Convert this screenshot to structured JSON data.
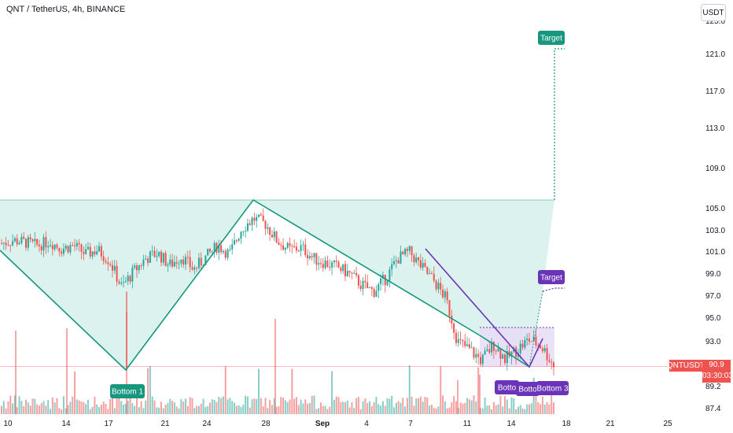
{
  "header": {
    "symbol_title": "QNT / TetherUS, 4h, BINANCE",
    "unit_button": "USDT"
  },
  "price_tag": {
    "symbol": "QNTUSDT",
    "price": "90.9",
    "countdown": "03:30:03"
  },
  "colors": {
    "up": "#26a69a",
    "down": "#ef5350",
    "purple": "#6a33b8",
    "teal": "#16977e",
    "fill_teal": "#d8f1ec"
  },
  "labels": {
    "target_1": "Target",
    "target_2": "Target",
    "bottom_1": "Bottom 1",
    "bottom_2": "Botto",
    "bottom_3": "Bottom 3",
    "bottom_overlap": "Botto"
  },
  "chart_data": {
    "type": "candlestick",
    "y_ticks": [
      "125.0",
      "121.0",
      "117.0",
      "113.0",
      "109.0",
      "105.0",
      "103.0",
      "101.0",
      "99.0",
      "97.0",
      "95.0",
      "93.0",
      "89.2",
      "87.4"
    ],
    "x_ticks": [
      "10",
      "14",
      "17",
      "21",
      "24",
      "28",
      "Sep",
      "4",
      "7",
      "11",
      "14",
      "18",
      "21",
      "25"
    ],
    "ylim": [
      87.0,
      125.5
    ],
    "current_price": 90.9,
    "series_close_path": [
      101.8,
      102.1,
      101.9,
      101.6,
      102.0,
      101.3,
      101.6,
      100.8,
      101.2,
      100.2,
      97.8,
      99.2,
      100.4,
      100.9,
      99.8,
      100.6,
      99.4,
      100.5,
      101.6,
      100.8,
      103.2,
      104.1,
      103.6,
      102.0,
      101.2,
      101.4,
      100.4,
      100.0,
      99.6,
      99.0,
      98.0,
      97.4,
      98.6,
      100.4,
      101.0,
      99.6,
      98.4,
      96.8,
      93.0,
      92.3,
      91.4,
      92.8,
      91.5,
      92.4,
      93.2,
      92.6,
      91.0
    ]
  }
}
